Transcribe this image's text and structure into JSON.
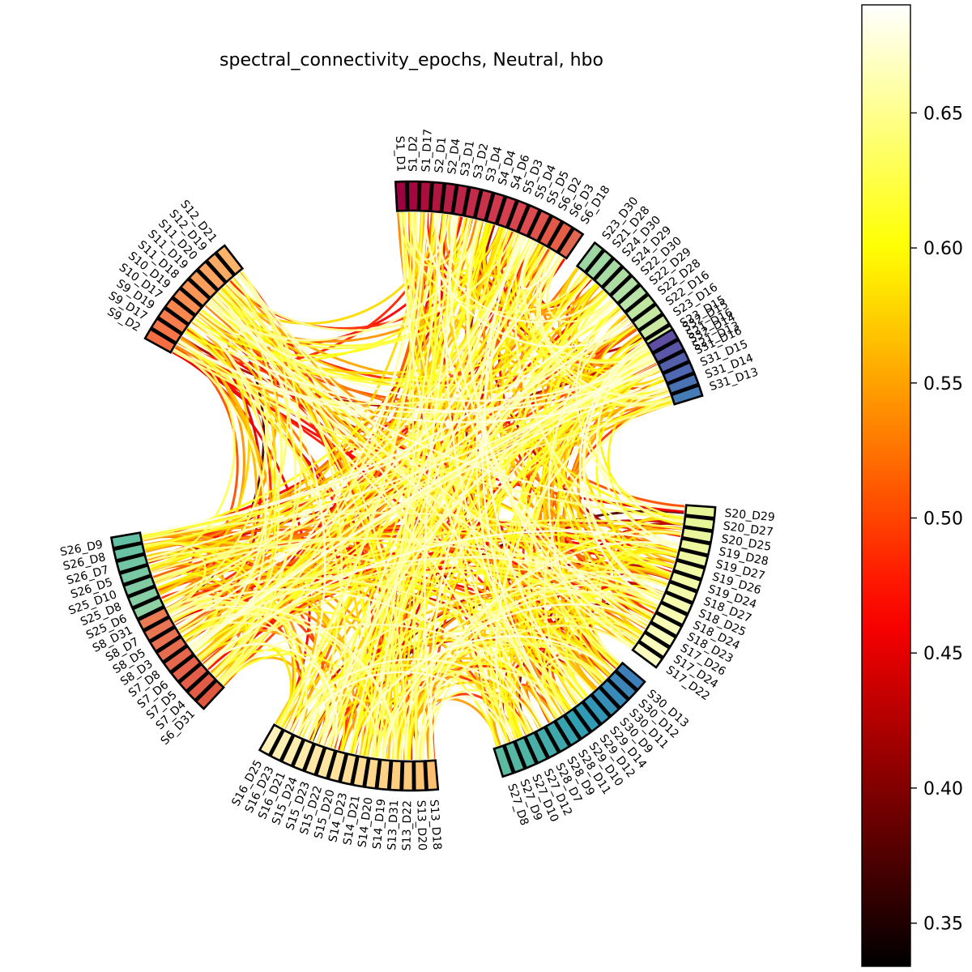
{
  "chart_data": {
    "type": "chord",
    "title": "spectral_connectivity_epochs, Neutral, hbo",
    "colormap": "hot",
    "colorbar": {
      "ticks": [
        0.35,
        0.4,
        0.45,
        0.5,
        0.55,
        0.6,
        0.65
      ],
      "tick_labels": [
        "0.35",
        "0.40",
        "0.45",
        "0.50",
        "0.55",
        "0.60",
        "0.65"
      ],
      "vmin": 0.334,
      "vmax": 0.69
    },
    "groups": [
      {
        "labels": [
          "S1_D1",
          "S1_D2",
          "S1_D17",
          "S2_D1",
          "S2_D4",
          "S3_D1",
          "S3_D2",
          "S3_D4",
          "S4_D4",
          "S4_D6",
          "S5_D3",
          "S5_D4",
          "S5_D5",
          "S6_D2",
          "S6_D3",
          "S6_D18"
        ],
        "colors": [
          "#9e0142",
          "#a3073f",
          "#aa0d3e",
          "#b0163f",
          "#b61e45",
          "#bd2548",
          "#c22c4a",
          "#c9324b",
          "#cf384d",
          "#d53e4f",
          "#d9454e",
          "#dc4b4e",
          "#e0524c",
          "#e35849",
          "#e75e47",
          "#e06850"
        ]
      },
      {
        "labels": [
          "S23_D30",
          "S21_D28",
          "S24_D30",
          "S24_D29",
          "S22_D30",
          "S22_D29",
          "S22_D28",
          "S22_D16",
          "S23_D16",
          "S23_D15",
          "S21_D16",
          "S21_D13"
        ],
        "colors": [
          "#9dd6a2",
          "#a2d9a4",
          "#a8dba4",
          "#aedda3",
          "#b3e0a6",
          "#b9e3a9",
          "#bfe5a0",
          "#c5e7a2",
          "#cbe9a2",
          "#d1eba0",
          "#d7eea1",
          "#dcf0a0"
        ]
      },
      {
        "labels": [
          "S32_D15",
          "S32_D14",
          "S31_D16",
          "S31_D15",
          "S31_D14",
          "S31_D13"
        ],
        "colors": [
          "#5e4fa2",
          "#5a56a8",
          "#545fac",
          "#4f68b1",
          "#4a72b3",
          "#457bb6"
        ]
      },
      {
        "labels": [
          "S20_D29",
          "S20_D27",
          "S20_D25",
          "S19_D28",
          "S19_D27",
          "S19_D26",
          "S19_D24",
          "S18_D27",
          "S18_D25",
          "S18_D24",
          "S18_D23",
          "S17_D26",
          "S17_D24",
          "S17_D22"
        ],
        "colors": [
          "#e6f598",
          "#e8f69a",
          "#eaf69d",
          "#ecf7a0",
          "#eef8a3",
          "#f0f9a6",
          "#f2faa9",
          "#f3faac",
          "#f5fbaf",
          "#f7fcb2",
          "#f8fcb6",
          "#f9fdba",
          "#fafdbd",
          "#fbfec0"
        ]
      },
      {
        "labels": [
          "S30_D13",
          "S30_D12",
          "S30_D11",
          "S30_D9",
          "S29_D14",
          "S29_D12",
          "S29_D10",
          "S28_D11",
          "S28_D9",
          "S28_D7",
          "S27_D12",
          "S27_D10",
          "S27_D9",
          "S27_D8"
        ],
        "colors": [
          "#3d7fb8",
          "#3b85b9",
          "#388bb9",
          "#3590b8",
          "#3296b7",
          "#309bb5",
          "#32a0b3",
          "#38a4b0",
          "#3ea8ad",
          "#44acaa",
          "#4ab0a7",
          "#50b4a4",
          "#56b8a2",
          "#5cbaa0"
        ]
      },
      {
        "labels": [
          "S13_D18",
          "S13_D20",
          "S13_D22",
          "S13_D31",
          "S14_D19",
          "S14_D20",
          "S14_D21",
          "S14_D23",
          "S15_D20",
          "S15_D22",
          "S15_D23",
          "S15_D24",
          "S16_D21",
          "S16_D23",
          "S16_D25"
        ],
        "colors": [
          "#fdbe6f",
          "#fdc474",
          "#fdc97a",
          "#fece80",
          "#fed286",
          "#fed68c",
          "#feda92",
          "#fede97",
          "#fee19c",
          "#fee4a1",
          "#fee7a6",
          "#feeaab",
          "#feecaf",
          "#feefb3",
          "#fff1b8"
        ]
      },
      {
        "labels": [
          "S6_D31",
          "S7_D4",
          "S7_D5",
          "S7_D6",
          "S7_D8",
          "S8_D3",
          "S8_D5",
          "S8_D7",
          "S8_D31",
          "S25_D6",
          "S25_D8",
          "S25_D10",
          "S26_D5",
          "S26_D7",
          "S26_D8",
          "S26_D9"
        ],
        "colors": [
          "#e0573f",
          "#e25b44",
          "#e35f47",
          "#e4634a",
          "#e5684c",
          "#e66c4f",
          "#e77151",
          "#e87653",
          "#e97b55",
          "#8fd1a4",
          "#88cea5",
          "#80cba4",
          "#78c8a4",
          "#71c5a4",
          "#6ac2a4",
          "#63bfa4"
        ]
      },
      {
        "labels": [
          "S9_D2",
          "S9_D17",
          "S9_D19",
          "S10_D17",
          "S10_D19",
          "S11_D18",
          "S11_D19",
          "S11_D20",
          "S12_D19",
          "S12_D21"
        ],
        "colors": [
          "#f46d43",
          "#f67647",
          "#f77e4b",
          "#f8864f",
          "#f98e53",
          "#fa9657",
          "#fb9d5b",
          "#fca460",
          "#fcab65",
          "#fdb46a"
        ]
      }
    ]
  }
}
